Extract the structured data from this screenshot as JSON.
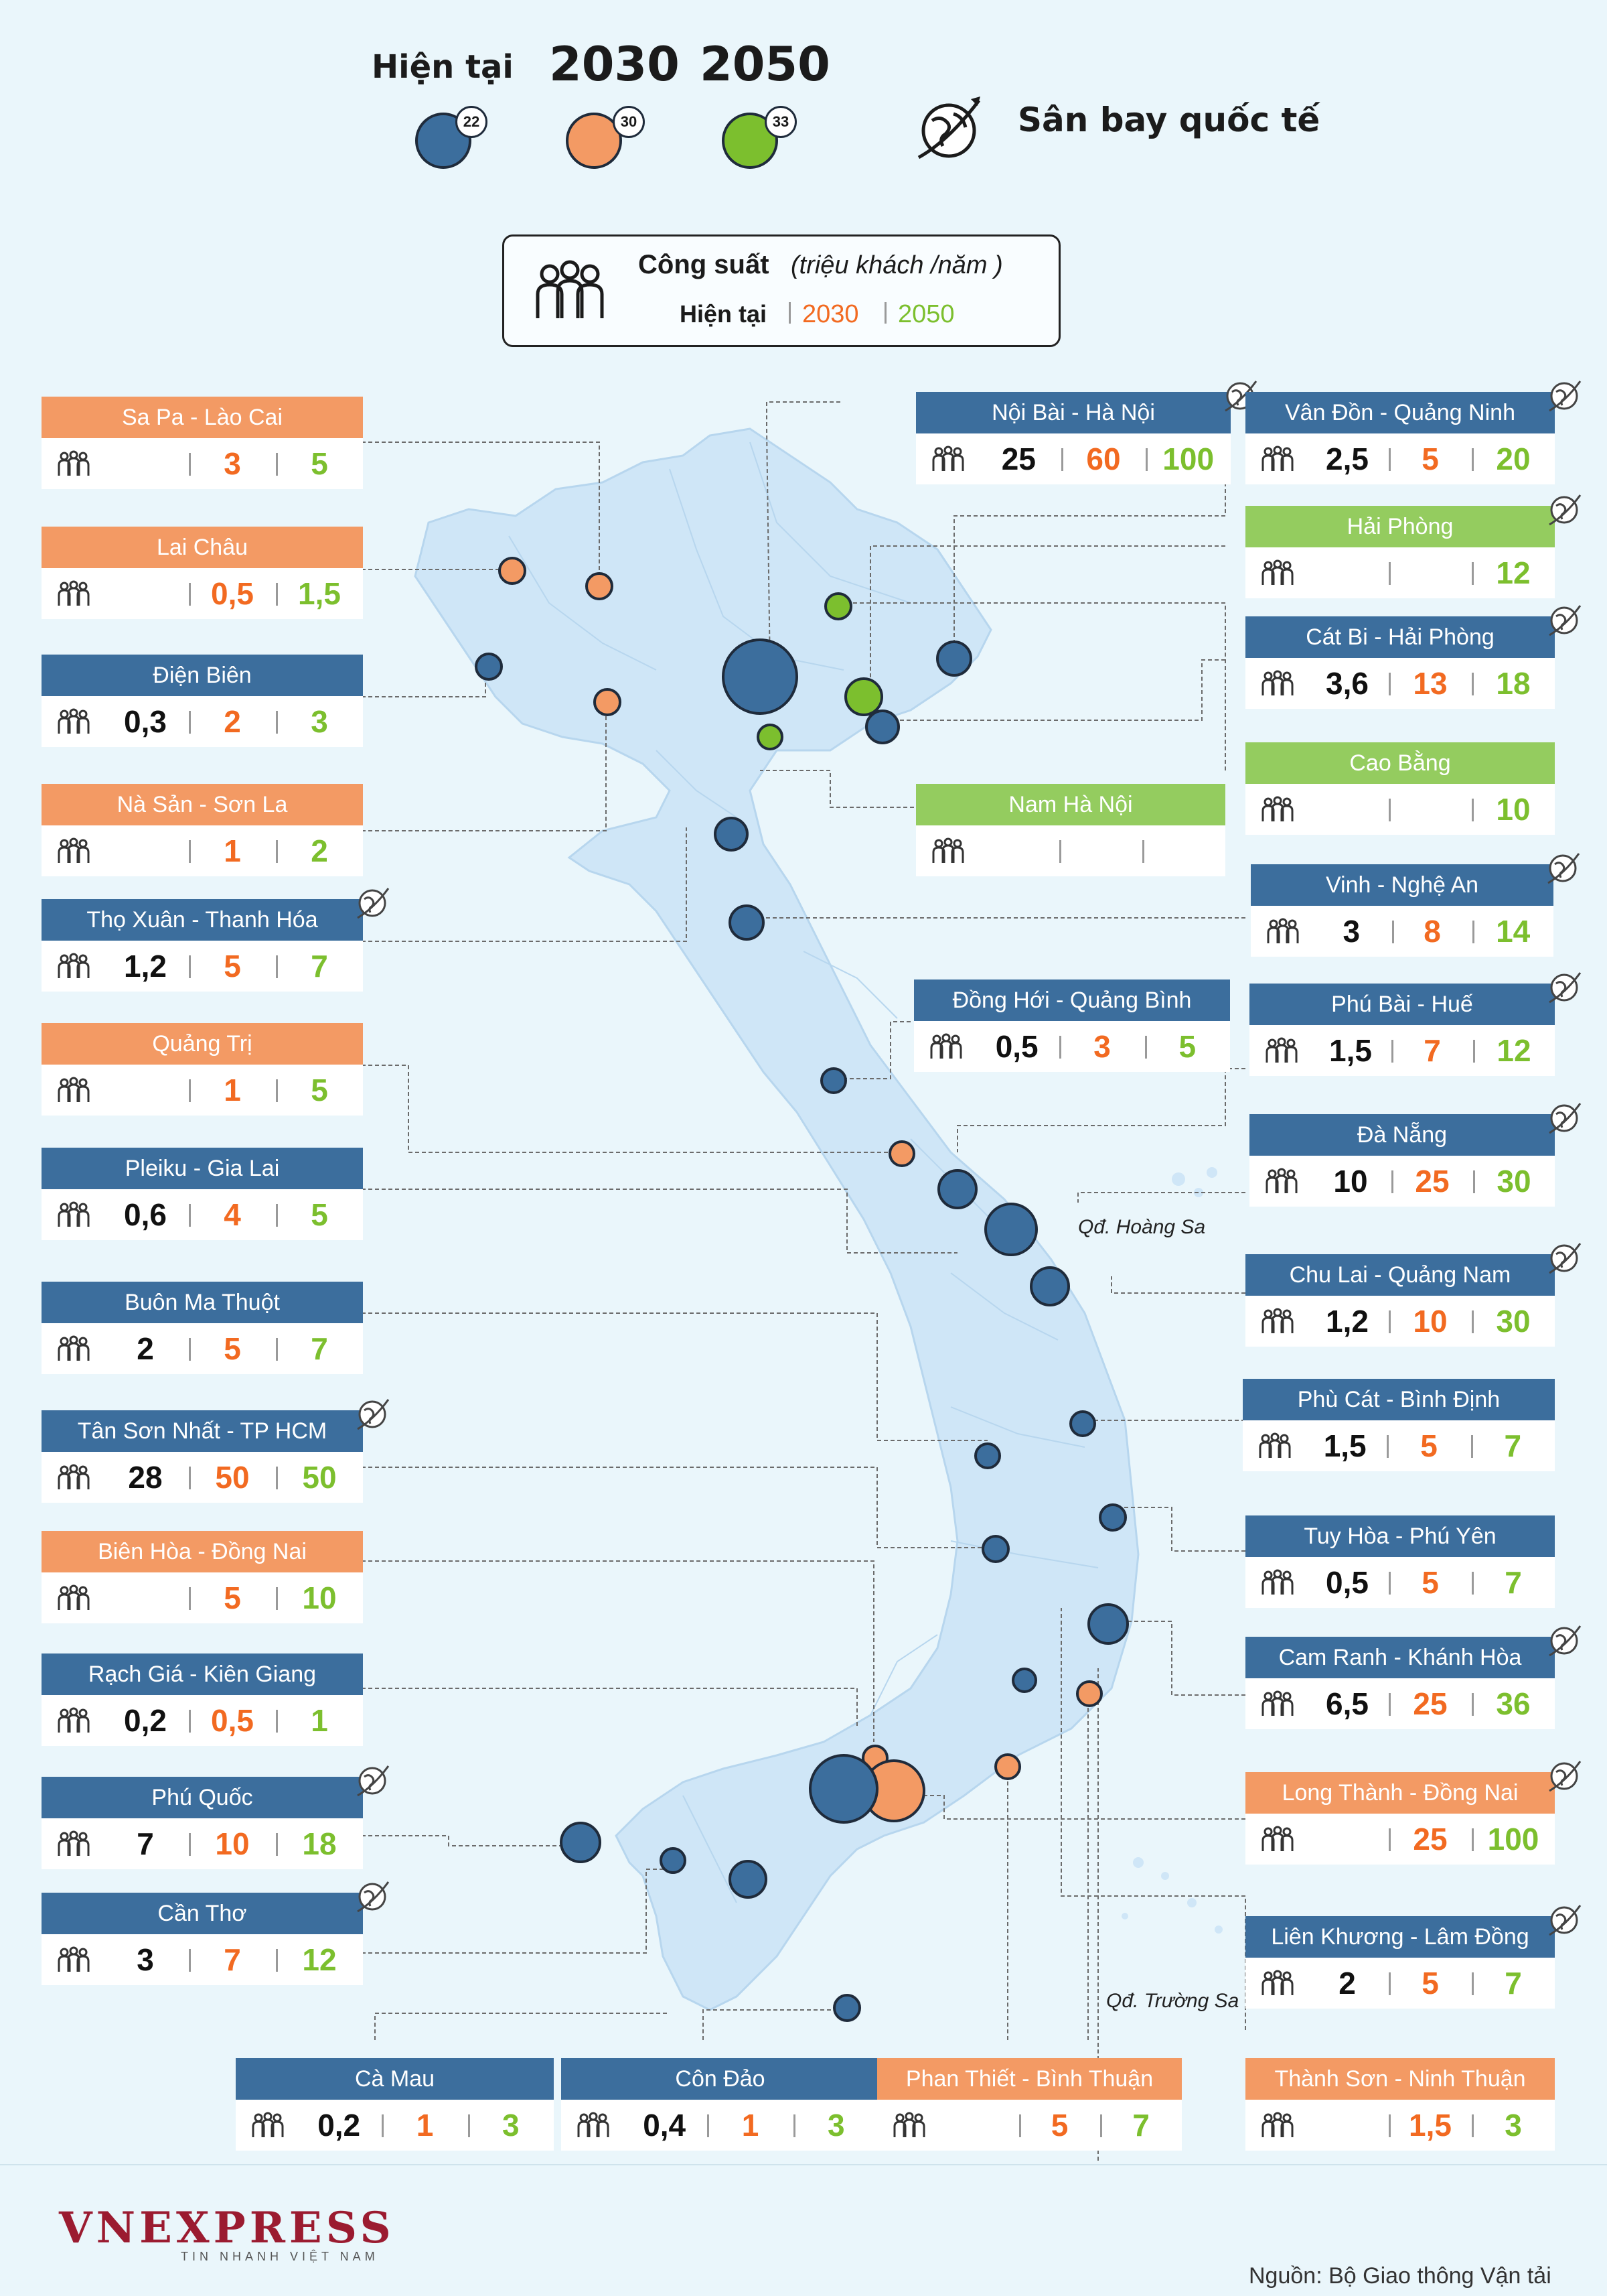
{
  "legend": {
    "current_label": "Hiện tại",
    "y2030_label": "2030",
    "y2050_label": "2050",
    "current_count": "22",
    "y2030_count": "30",
    "y2050_count": "33",
    "international_label": "Sân bay quốc tế"
  },
  "capacity_legend": {
    "title": "Công suất",
    "unit": "(triệu khách /năm )",
    "current": "Hiện tại",
    "y2030": "2030",
    "y2050": "2050"
  },
  "colors": {
    "blue": "#3c6e9d",
    "orange": "#f39a64",
    "green": "#94cc5f",
    "value_2030": "#f26a21",
    "value_2050": "#7cbf2e",
    "map_land": "#cfe6f7"
  },
  "airports": [
    {
      "name": "Sa Pa - Lào Cai",
      "color": "orange",
      "v": [
        "",
        "3",
        "5"
      ],
      "intl": false
    },
    {
      "name": "Lai Châu",
      "color": "orange",
      "v": [
        "",
        "0,5",
        "1,5"
      ],
      "intl": false
    },
    {
      "name": "Điện Biên",
      "color": "blue",
      "v": [
        "0,3",
        "2",
        "3"
      ],
      "intl": false
    },
    {
      "name": "Nà Sản - Sơn La",
      "color": "orange",
      "v": [
        "",
        "1",
        "2"
      ],
      "intl": false
    },
    {
      "name": "Thọ Xuân - Thanh Hóa",
      "color": "blue",
      "v": [
        "1,2",
        "5",
        "7"
      ],
      "intl": true
    },
    {
      "name": "Quảng Trị",
      "color": "orange",
      "v": [
        "",
        "1",
        "5"
      ],
      "intl": false
    },
    {
      "name": "Pleiku - Gia Lai",
      "color": "blue",
      "v": [
        "0,6",
        "4",
        "5"
      ],
      "intl": false
    },
    {
      "name": "Buôn Ma Thuột",
      "color": "blue",
      "v": [
        "2",
        "5",
        "7"
      ],
      "intl": false
    },
    {
      "name": "Tân Sơn Nhất - TP HCM",
      "color": "blue",
      "v": [
        "28",
        "50",
        "50"
      ],
      "intl": true
    },
    {
      "name": "Biên Hòa - Đồng Nai",
      "color": "orange",
      "v": [
        "",
        "5",
        "10"
      ],
      "intl": false
    },
    {
      "name": "Rạch Giá - Kiên Giang",
      "color": "blue",
      "v": [
        "0,2",
        "0,5",
        "1"
      ],
      "intl": false
    },
    {
      "name": "Phú Quốc",
      "color": "blue",
      "v": [
        "7",
        "10",
        "18"
      ],
      "intl": true
    },
    {
      "name": "Cần Thơ",
      "color": "blue",
      "v": [
        "3",
        "7",
        "12"
      ],
      "intl": true
    },
    {
      "name": "Cà Mau",
      "color": "blue",
      "v": [
        "0,2",
        "1",
        "3"
      ],
      "intl": false
    },
    {
      "name": "Côn Đảo",
      "color": "blue",
      "v": [
        "0,4",
        "1",
        "3"
      ],
      "intl": false
    },
    {
      "name": "Phan Thiết - Bình Thuận",
      "color": "orange",
      "v": [
        "",
        "5",
        "7"
      ],
      "intl": false
    },
    {
      "name": "Thành Sơn - Ninh Thuận",
      "color": "orange",
      "v": [
        "",
        "1,5",
        "3"
      ],
      "intl": false
    },
    {
      "name": "Nội Bài - Hà Nội",
      "color": "blue",
      "v": [
        "25",
        "60",
        "100"
      ],
      "intl": true
    },
    {
      "name": "Vân Đồn - Quảng Ninh",
      "color": "blue",
      "v": [
        "2,5",
        "5",
        "20"
      ],
      "intl": true
    },
    {
      "name": "Hải Phòng",
      "color": "green",
      "v": [
        "",
        "",
        "12"
      ],
      "intl": true
    },
    {
      "name": "Cát Bi - Hải Phòng",
      "color": "blue",
      "v": [
        "3,6",
        "13",
        "18"
      ],
      "intl": true
    },
    {
      "name": "Cao Bằng",
      "color": "green",
      "v": [
        "",
        "",
        "10"
      ],
      "intl": false
    },
    {
      "name": "Nam Hà Nội",
      "color": "green",
      "v": [
        "",
        "",
        ""
      ],
      "intl": false
    },
    {
      "name": "Vinh - Nghệ An",
      "color": "blue",
      "v": [
        "3",
        "8",
        "14"
      ],
      "intl": true
    },
    {
      "name": "Đồng Hới - Quảng Bình",
      "color": "blue",
      "v": [
        "0,5",
        "3",
        "5"
      ],
      "intl": false
    },
    {
      "name": "Phú Bài - Huế",
      "color": "blue",
      "v": [
        "1,5",
        "7",
        "12"
      ],
      "intl": true
    },
    {
      "name": "Đà Nẵng",
      "color": "blue",
      "v": [
        "10",
        "25",
        "30"
      ],
      "intl": true
    },
    {
      "name": "Chu Lai - Quảng Nam",
      "color": "blue",
      "v": [
        "1,2",
        "10",
        "30"
      ],
      "intl": true
    },
    {
      "name": "Phù Cát - Bình Định",
      "color": "blue",
      "v": [
        "1,5",
        "5",
        "7"
      ],
      "intl": false
    },
    {
      "name": "Tuy Hòa - Phú Yên",
      "color": "blue",
      "v": [
        "0,5",
        "5",
        "7"
      ],
      "intl": false
    },
    {
      "name": "Cam Ranh - Khánh Hòa",
      "color": "blue",
      "v": [
        "6,5",
        "25",
        "36"
      ],
      "intl": true
    },
    {
      "name": "Long Thành - Đồng Nai",
      "color": "orange",
      "v": [
        "",
        "25",
        "100"
      ],
      "intl": true
    },
    {
      "name": "Liên Khương - Lâm Đồng",
      "color": "blue",
      "v": [
        "2",
        "5",
        "7"
      ],
      "intl": true
    }
  ],
  "map_labels": {
    "hoang_sa": "Qđ. Hoàng Sa",
    "truong_sa": "Qđ. Trường Sa"
  },
  "footer": {
    "logo": "VNEXPRESS",
    "logo_sub": "TIN NHANH VIỆT NAM",
    "source": "Nguồn: Bộ Giao thông Vận tải"
  }
}
